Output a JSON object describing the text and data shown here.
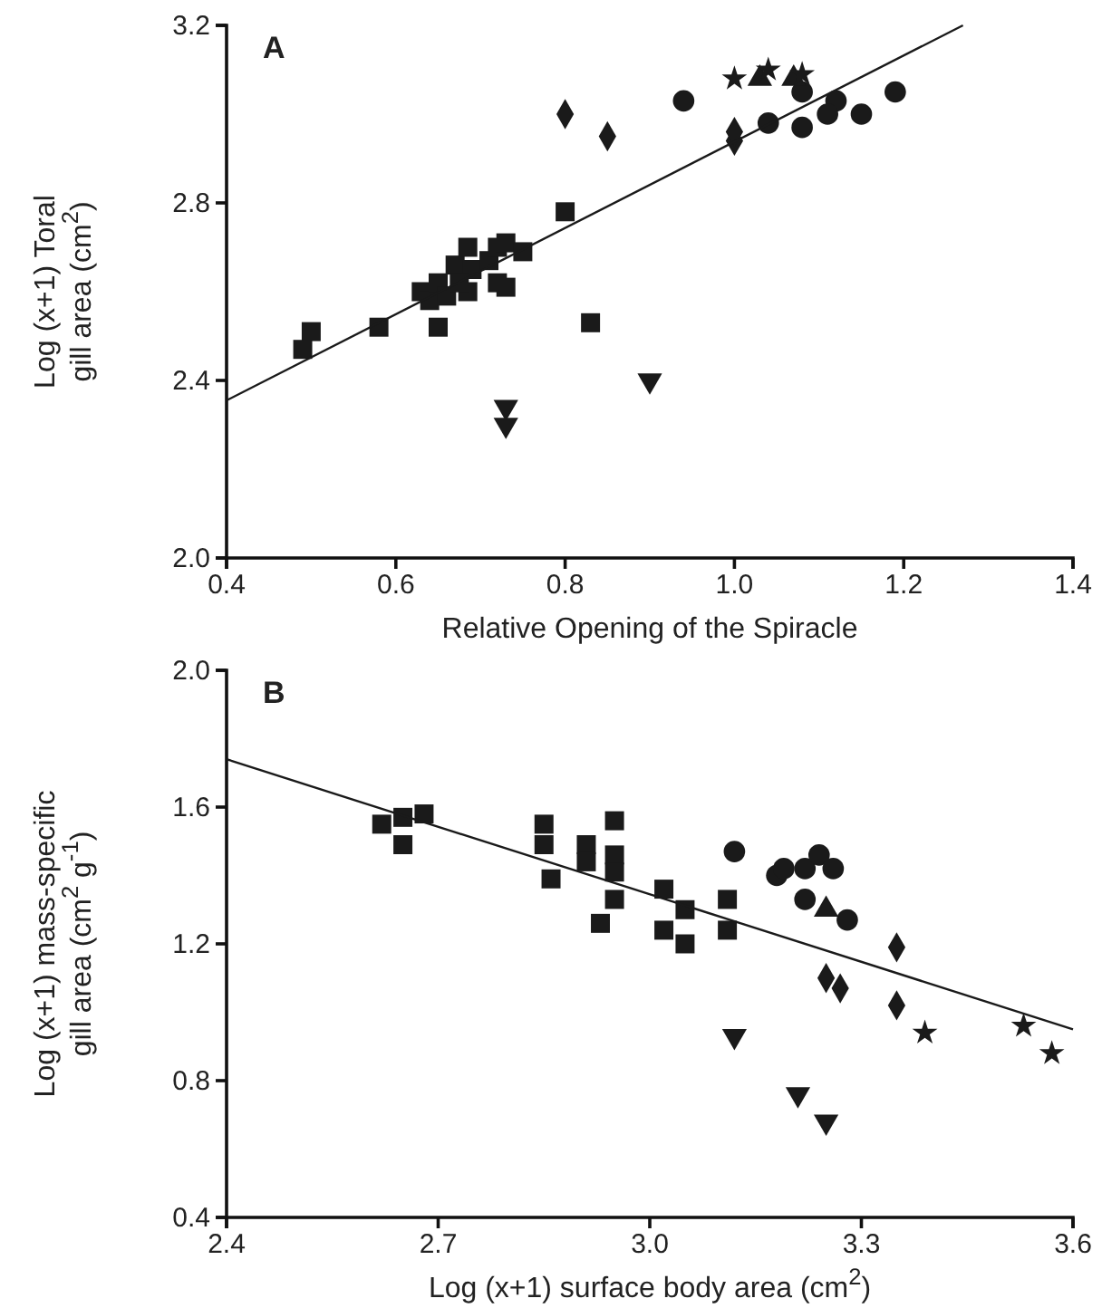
{
  "chart_data": [
    {
      "type": "scatter",
      "title": "A",
      "xlabel": "Relative Opening of the Spiracle",
      "ylabel": "Log (x+1) Toral\ngill area (cm$^{2}$)",
      "xlim": [
        0.4,
        1.4
      ],
      "ylim": [
        2.0,
        3.2
      ],
      "xticks": [
        {
          "value": 0.4,
          "label": "0.4"
        },
        {
          "value": 0.6,
          "label": "0.6"
        },
        {
          "value": 0.8,
          "label": "0.8"
        },
        {
          "value": 1.0,
          "label": "1.0"
        },
        {
          "value": 1.2,
          "label": "1.2"
        },
        {
          "value": 1.4,
          "label": "1.4"
        }
      ],
      "yticks": [
        {
          "value": 2.0,
          "label": "2.0"
        },
        {
          "value": 2.4,
          "label": "2.4"
        },
        {
          "value": 2.8,
          "label": "2.8"
        },
        {
          "value": 3.2,
          "label": "3.2"
        }
      ],
      "grid": false,
      "series": [
        {
          "color": "#1a1a1a",
          "marker": "square",
          "x": [
            0.49,
            0.5,
            0.58,
            0.65,
            0.63,
            0.64,
            0.65,
            0.66,
            0.67,
            0.685,
            0.685,
            0.69,
            0.675,
            0.71,
            0.72,
            0.72,
            0.73,
            0.73,
            0.75,
            0.8,
            0.83
          ],
          "values": [
            2.47,
            2.51,
            2.52,
            2.52,
            2.6,
            2.58,
            2.62,
            2.59,
            2.66,
            2.7,
            2.6,
            2.65,
            2.62,
            2.67,
            2.7,
            2.62,
            2.71,
            2.61,
            2.69,
            2.78,
            2.53
          ]
        },
        {
          "color": "#1a1a1a",
          "marker": "diamond",
          "x": [
            0.8,
            0.85,
            1.0,
            1.0
          ],
          "values": [
            3.0,
            2.95,
            2.94,
            2.96
          ]
        },
        {
          "color": "#1a1a1a",
          "marker": "circle",
          "x": [
            0.94,
            1.04,
            1.08,
            1.08,
            1.12,
            1.11,
            1.15,
            1.19
          ],
          "values": [
            3.03,
            2.98,
            2.97,
            3.05,
            3.03,
            3.0,
            3.0,
            3.05
          ]
        },
        {
          "color": "#1a1a1a",
          "marker": "triangle",
          "x": [
            1.03,
            1.07
          ],
          "values": [
            3.08,
            3.08
          ]
        },
        {
          "color": "#1a1a1a",
          "marker": "star",
          "x": [
            1.0,
            1.04,
            1.08
          ],
          "values": [
            3.08,
            3.1,
            3.09
          ]
        },
        {
          "color": "#1a1a1a",
          "marker": "triangle-down",
          "x": [
            0.73,
            0.73,
            0.9
          ],
          "values": [
            2.34,
            2.3,
            2.4
          ]
        },
        {
          "type": "line",
          "color": "#1a1a1a",
          "marker": "none",
          "x": [
            0.4,
            1.27
          ],
          "values": [
            2.355,
            3.2
          ]
        }
      ]
    },
    {
      "type": "scatter",
      "title": "B",
      "xlabel": "Log (x+1) surface body area (cm$^{2}$)",
      "ylabel": "Log (x+1) mass-specific\ngill area (cm$^{2}$ g$^{-1}$)",
      "xlim": [
        2.4,
        3.6
      ],
      "ylim": [
        0.4,
        2.0
      ],
      "xticks": [
        {
          "value": 2.4,
          "label": "2.4"
        },
        {
          "value": 2.7,
          "label": "2.7"
        },
        {
          "value": 3.0,
          "label": "3.0"
        },
        {
          "value": 3.3,
          "label": "3.3"
        },
        {
          "value": 3.6,
          "label": "3.6"
        }
      ],
      "yticks": [
        {
          "value": 0.4,
          "label": "0.4"
        },
        {
          "value": 0.8,
          "label": "0.8"
        },
        {
          "value": 1.2,
          "label": "1.2"
        },
        {
          "value": 1.6,
          "label": "1.6"
        },
        {
          "value": 2.0,
          "label": "2.0"
        }
      ],
      "grid": false,
      "series": [
        {
          "color": "#1a1a1a",
          "marker": "square",
          "x": [
            2.62,
            2.65,
            2.65,
            2.68,
            2.85,
            2.85,
            2.86,
            2.91,
            2.91,
            2.93,
            2.95,
            2.95,
            2.95,
            2.95,
            3.02,
            3.02,
            3.05,
            3.05,
            3.11,
            3.11
          ],
          "values": [
            1.55,
            1.49,
            1.57,
            1.58,
            1.55,
            1.49,
            1.39,
            1.49,
            1.44,
            1.26,
            1.56,
            1.46,
            1.41,
            1.33,
            1.36,
            1.24,
            1.3,
            1.2,
            1.33,
            1.24
          ]
        },
        {
          "color": "#1a1a1a",
          "marker": "circle",
          "x": [
            3.12,
            3.18,
            3.19,
            3.22,
            3.24,
            3.26,
            3.22,
            3.28
          ],
          "values": [
            1.47,
            1.4,
            1.42,
            1.42,
            1.46,
            1.42,
            1.33,
            1.27
          ]
        },
        {
          "color": "#1a1a1a",
          "marker": "triangle",
          "x": [
            3.25
          ],
          "values": [
            1.3
          ]
        },
        {
          "color": "#1a1a1a",
          "marker": "diamond",
          "x": [
            3.25,
            3.27,
            3.35,
            3.35
          ],
          "values": [
            1.1,
            1.07,
            1.19,
            1.02
          ]
        },
        {
          "color": "#1a1a1a",
          "marker": "star",
          "x": [
            3.39,
            3.53,
            3.57
          ],
          "values": [
            0.94,
            0.96,
            0.88
          ]
        },
        {
          "color": "#1a1a1a",
          "marker": "triangle-down",
          "x": [
            3.12,
            3.21,
            3.25
          ],
          "values": [
            0.93,
            0.76,
            0.68
          ]
        },
        {
          "type": "line",
          "color": "#1a1a1a",
          "marker": "none",
          "x": [
            2.4,
            3.6
          ],
          "values": [
            1.74,
            0.95
          ]
        }
      ]
    }
  ]
}
